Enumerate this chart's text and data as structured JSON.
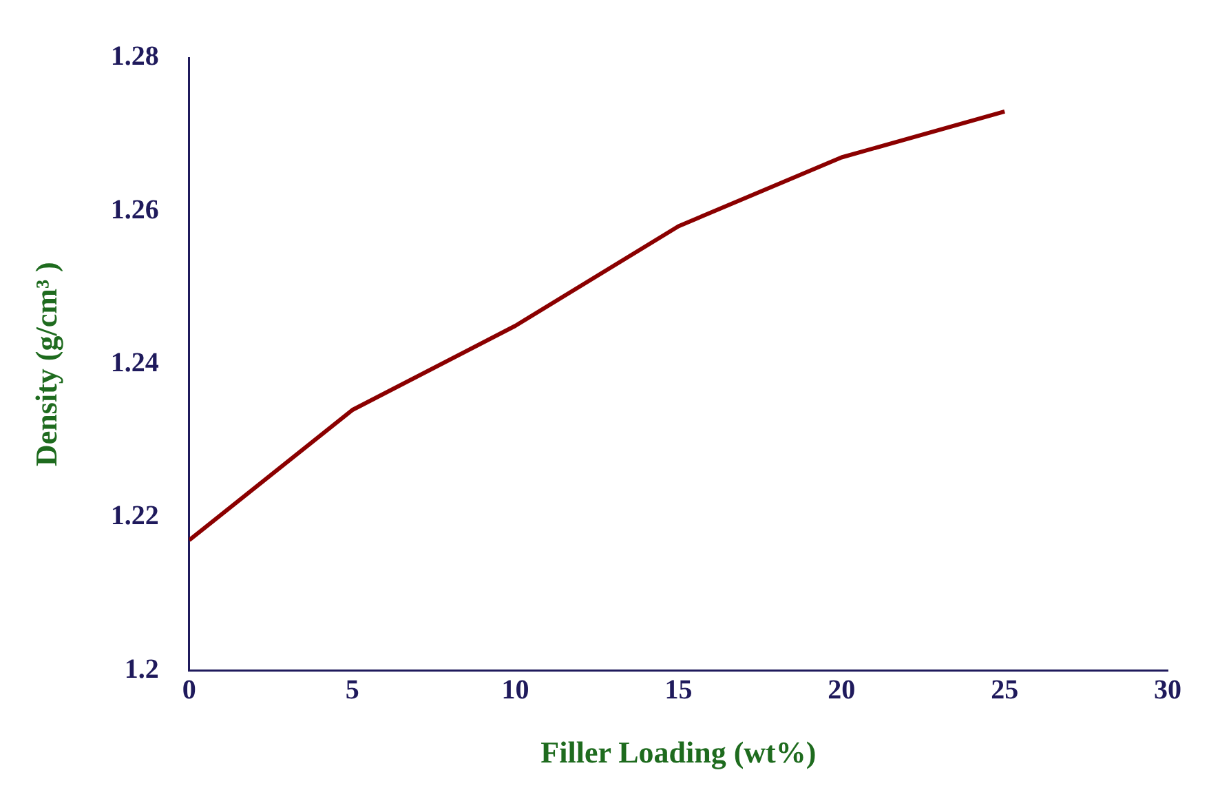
{
  "chart_data": {
    "type": "line",
    "xlabel": "Filler Loading (wt%)",
    "ylabel": "Density (g/cm³ )",
    "x": [
      0,
      5,
      10,
      15,
      20,
      25
    ],
    "series": [
      {
        "color": "#8b0000",
        "values": [
          1.217,
          1.234,
          1.245,
          1.258,
          1.267,
          1.273
        ]
      }
    ],
    "xlim": [
      0,
      30
    ],
    "xticks": [
      0,
      5,
      10,
      15,
      20,
      25,
      30
    ],
    "ylim": [
      1.2,
      1.28
    ],
    "yticks": [
      1.2,
      1.22,
      1.24,
      1.26,
      1.28
    ],
    "grid": false,
    "legend": false,
    "marker": "none",
    "line_style": "solid"
  }
}
